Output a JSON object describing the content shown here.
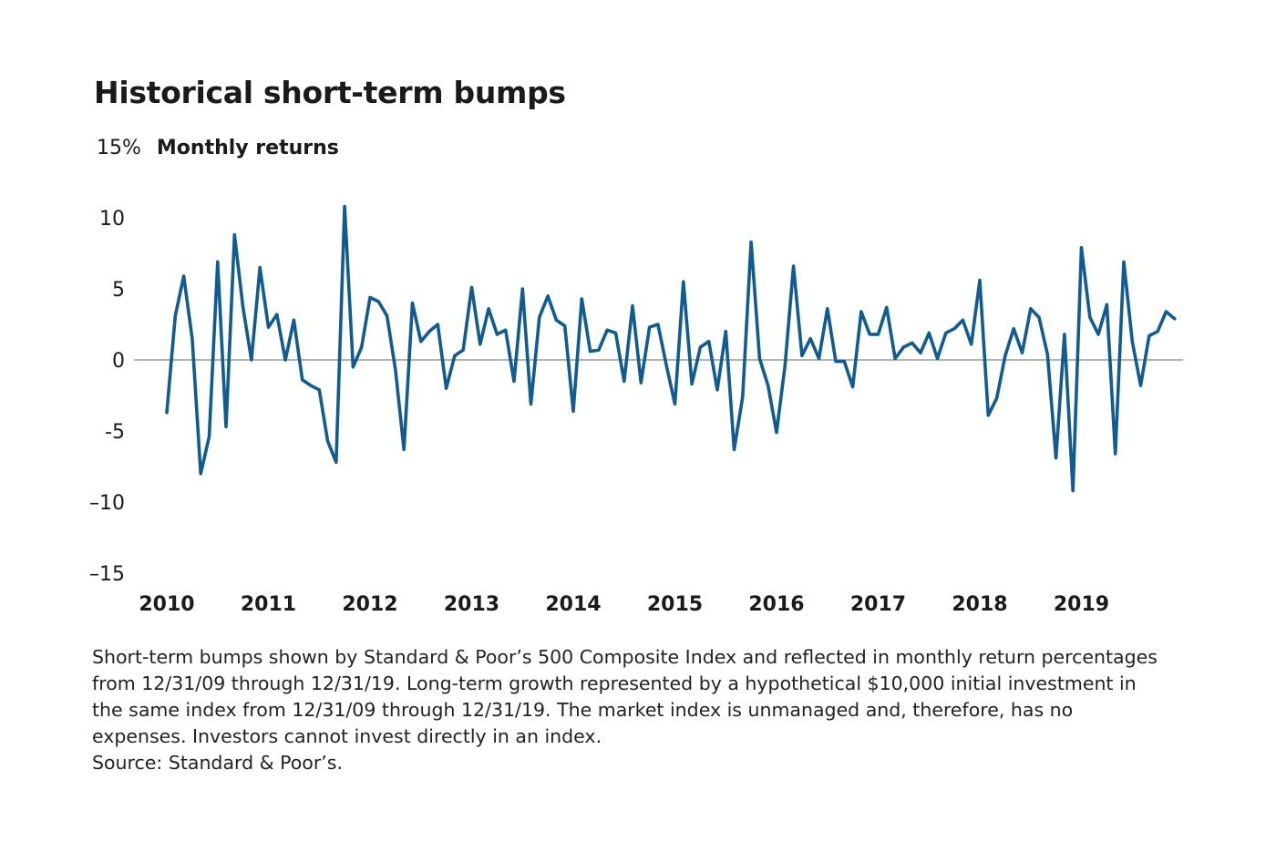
{
  "title": "Historical short-term bumps",
  "chart_data": {
    "type": "line",
    "title": "Historical short-term bumps",
    "ylabel": "Monthly returns",
    "y_unit": "%",
    "ylim": [
      -15,
      15
    ],
    "yticks": [
      15,
      10,
      5,
      0,
      -5,
      -10,
      -15
    ],
    "ytick_labels": [
      "15%",
      "10",
      "5",
      "0",
      "-5",
      "–10",
      "–15"
    ],
    "xticks": [
      "2010",
      "2011",
      "2012",
      "2013",
      "2014",
      "2015",
      "2016",
      "2017",
      "2018",
      "2019"
    ],
    "x_start_year": 2010,
    "zero_line": true,
    "grid": false,
    "series": [
      {
        "color": "#0f5c94",
        "values": [
          -3.7,
          3.1,
          5.9,
          1.5,
          -8.0,
          -5.4,
          6.9,
          -4.7,
          8.8,
          3.7,
          0.0,
          6.5,
          2.3,
          3.2,
          0.0,
          2.8,
          -1.4,
          -1.8,
          -2.1,
          -5.7,
          -7.2,
          10.8,
          -0.5,
          0.9,
          4.4,
          4.1,
          3.1,
          -0.7,
          -6.3,
          4.0,
          1.3,
          2.0,
          2.5,
          -2.0,
          0.3,
          0.7,
          5.1,
          1.1,
          3.6,
          1.8,
          2.1,
          -1.5,
          5.0,
          -3.1,
          3.0,
          4.5,
          2.8,
          2.4,
          -3.6,
          4.3,
          0.6,
          0.7,
          2.1,
          1.9,
          -1.5,
          3.8,
          -1.6,
          2.3,
          2.5,
          -0.4,
          -3.1,
          5.5,
          -1.7,
          0.9,
          1.3,
          -2.1,
          2.0,
          -6.3,
          -2.6,
          8.3,
          0.1,
          -1.8,
          -5.1,
          -0.4,
          6.6,
          0.3,
          1.5,
          0.1,
          3.6,
          -0.1,
          -0.1,
          -1.9,
          3.4,
          1.8,
          1.8,
          3.7,
          0.1,
          0.9,
          1.2,
          0.5,
          1.9,
          0.1,
          1.9,
          2.2,
          2.8,
          1.1,
          5.6,
          -3.9,
          -2.7,
          0.3,
          2.2,
          0.5,
          3.6,
          3.0,
          0.4,
          -6.9,
          1.8,
          -9.2,
          7.9,
          3.0,
          1.8,
          3.9,
          -6.6,
          6.9,
          1.3,
          -1.8,
          1.7,
          2.0,
          3.4,
          2.9
        ]
      }
    ]
  },
  "footnote": {
    "text": "Short-term bumps shown by Standard & Poor’s 500 Composite Index and reflected in monthly return percentages from 12/31/09 through 12/31/19. Long-term growth represented by a hypothetical $10,000 initial investment in the same index from 12/31/09 through 12/31/19. The market index is unmanaged and, therefore, has no expenses. Investors cannot invest directly in an index.",
    "source": "Source: Standard & Poor’s."
  }
}
